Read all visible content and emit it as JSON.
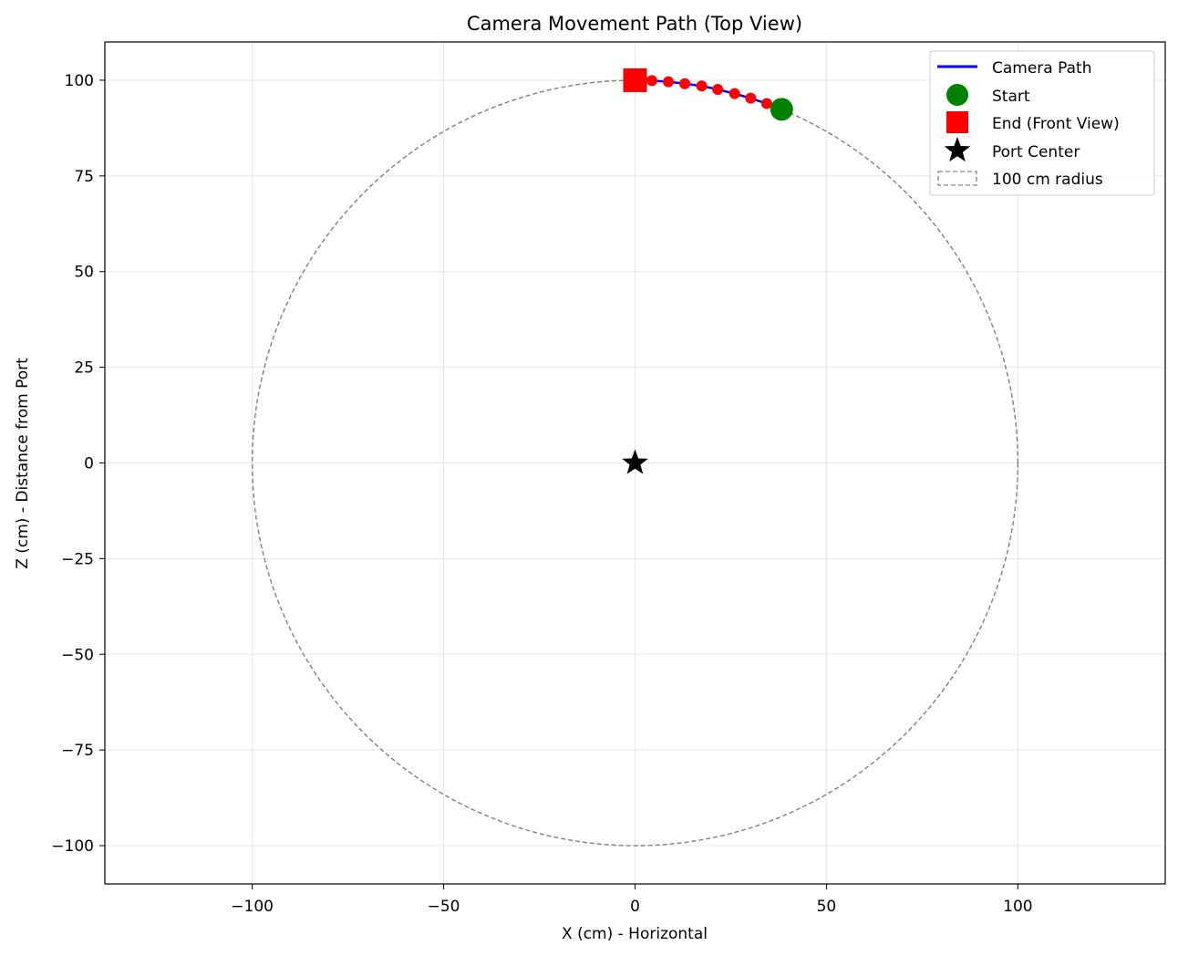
{
  "chart_data": {
    "type": "scatter",
    "title": "Camera Movement Path (Top View)",
    "xlabel": "X (cm) - Horizontal",
    "ylabel": "Z (cm) - Distance from Port",
    "xlim": [
      -138.5,
      138.5
    ],
    "ylim": [
      -110,
      110
    ],
    "xticks": [
      -100,
      -50,
      0,
      50,
      100
    ],
    "yticks": [
      -100,
      -75,
      -50,
      -25,
      0,
      25,
      50,
      75,
      100
    ],
    "xtick_labels": [
      "−100",
      "−50",
      "0",
      "50",
      "100"
    ],
    "ytick_labels": [
      "−100",
      "−75",
      "−50",
      "−25",
      "0",
      "25",
      "50",
      "75",
      "100"
    ],
    "grid": true,
    "legend_position": "top-right",
    "circle": {
      "label": "100 cm radius",
      "radius": 100,
      "center": [
        0,
        0
      ],
      "color": "#808080",
      "style": "dashed"
    },
    "camera_path": {
      "label": "Camera Path",
      "color": "#0000ff",
      "x": [
        38.3,
        34.4,
        30.2,
        26.0,
        21.6,
        17.4,
        13.0,
        8.7,
        4.4,
        0.0
      ],
      "y": [
        92.4,
        93.9,
        95.3,
        96.5,
        97.6,
        98.5,
        99.1,
        99.6,
        99.9,
        100.0
      ]
    },
    "waypoints": {
      "color": "#ff0000",
      "x": [
        34.4,
        30.2,
        26.0,
        21.6,
        17.4,
        13.0,
        8.7,
        4.4
      ],
      "y": [
        93.9,
        95.3,
        96.5,
        97.6,
        98.5,
        99.1,
        99.6,
        99.9
      ]
    },
    "start": {
      "label": "Start",
      "x": 38.3,
      "y": 92.4,
      "color": "#008000",
      "marker": "circle"
    },
    "end": {
      "label": "End (Front View)",
      "x": 0.0,
      "y": 100.0,
      "color": "#ff0000",
      "marker": "square"
    },
    "port_center": {
      "label": "Port Center",
      "x": 0,
      "y": 0,
      "color": "#000000",
      "marker": "star"
    }
  }
}
